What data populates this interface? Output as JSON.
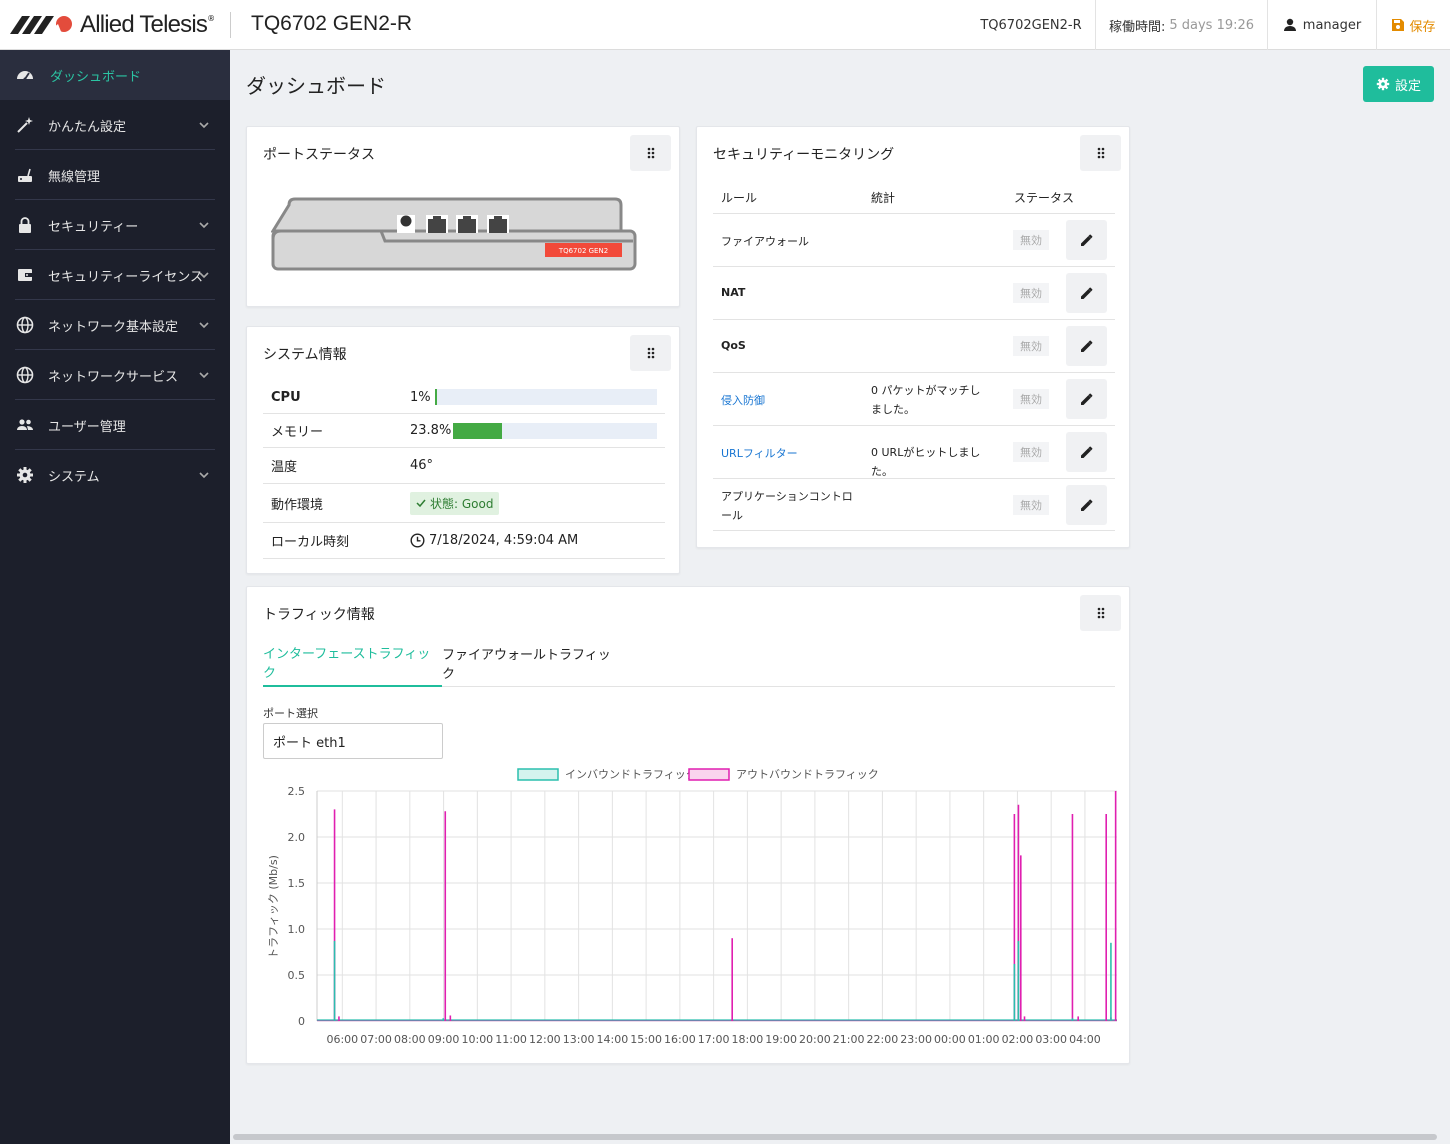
{
  "header": {
    "brand": "Allied Telesis",
    "brand_mark": "®",
    "device_title": "TQ6702 GEN2-R",
    "hostname": "TQ6702GEN2-R",
    "uptime_label": "稼働時間:",
    "uptime_value": "5 days 19:26",
    "user": "manager",
    "save": "保存"
  },
  "sidebar": {
    "items": [
      {
        "label": "ダッシュボード",
        "icon": "speedometer-icon"
      },
      {
        "label": "かんたん設定",
        "icon": "magic-wand-icon"
      },
      {
        "label": "無線管理",
        "icon": "router-icon"
      },
      {
        "label": "セキュリティー",
        "icon": "lock-icon"
      },
      {
        "label": "セキュリティーライセンス",
        "icon": "wallet-icon"
      },
      {
        "label": "ネットワーク基本設定",
        "icon": "globe-icon"
      },
      {
        "label": "ネットワークサービス",
        "icon": "globe-icon"
      },
      {
        "label": "ユーザー管理",
        "icon": "users-icon"
      },
      {
        "label": "システム",
        "icon": "gear-icon"
      }
    ]
  },
  "page": {
    "title": "ダッシュボード",
    "settings_button": "設定"
  },
  "port_status": {
    "title": "ポートステータス",
    "device_label": "TQ6702 GEN2"
  },
  "system_info": {
    "title": "システム情報",
    "cpu_label": "CPU",
    "cpu_value": "1%",
    "cpu_level": 0.01,
    "mem_label": "メモリー",
    "mem_value": "23.8%",
    "mem_level": 0.238,
    "temp_label": "温度",
    "temp_value": "46°",
    "env_label": "動作環境",
    "env_value": "状態: Good",
    "time_label": "ローカル時刻",
    "time_value": "7/18/2024, 4:59:04 AM"
  },
  "security": {
    "title": "セキュリティーモニタリング",
    "col_rule": "ルール",
    "col_stats": "統計",
    "col_status": "ステータス",
    "rows": [
      {
        "rule": "ファイアウォール",
        "stats": "",
        "status": "無効"
      },
      {
        "rule": "NAT",
        "stats": "",
        "status": "無効"
      },
      {
        "rule": "QoS",
        "stats": "",
        "status": "無効"
      },
      {
        "rule": "侵入防御",
        "stats": "0 パケットがマッチしました。",
        "status": "無効"
      },
      {
        "rule": "URLフィルター",
        "stats": "0 URLがヒットしました。",
        "status": "無効"
      },
      {
        "rule": "アプリケーションコントロール",
        "stats": "",
        "status": "無効"
      }
    ]
  },
  "traffic": {
    "title": "トラフィック情報",
    "tabs": [
      "インターフェーストラフィック",
      "ファイアウォールトラフィック"
    ],
    "port_label": "ポート選択",
    "port_value": "ポート eth1"
  },
  "colors": {
    "accent": "#1fbd9c",
    "inbound": "#2bbfad",
    "outbound": "#e01fb0",
    "save": "#e38b00"
  },
  "chart_data": {
    "type": "line",
    "ylabel": "トラフィック (Mb/s)",
    "ylim": [
      0,
      2.5
    ],
    "yticks": [
      "0",
      "0.5",
      "1.0",
      "1.5",
      "2.0",
      "2.5"
    ],
    "xticks": [
      "06:00",
      "07:00",
      "08:00",
      "09:00",
      "10:00",
      "11:00",
      "12:00",
      "13:00",
      "14:00",
      "15:00",
      "16:00",
      "17:00",
      "18:00",
      "19:00",
      "20:00",
      "21:00",
      "22:00",
      "23:00",
      "00:00",
      "01:00",
      "02:00",
      "03:00",
      "04:00"
    ],
    "x_range_hours": [
      5.25,
      28.95
    ],
    "legend": [
      "インバウンドトラフィック",
      "アウトバウンドトラフィック"
    ],
    "series": [
      {
        "name": "インバウンドトラフィック",
        "spikes": [
          [
            5.77,
            0.87
          ],
          [
            8.99,
            0.03
          ],
          [
            25.91,
            0.62
          ],
          [
            26.03,
            0.87
          ],
          [
            27.63,
            0.03
          ],
          [
            28.77,
            0.85
          ]
        ]
      },
      {
        "name": "アウトバウンドトラフィック",
        "spikes": [
          [
            5.77,
            2.3
          ],
          [
            5.9,
            0.05
          ],
          [
            9.05,
            2.28
          ],
          [
            9.2,
            0.06
          ],
          [
            17.55,
            0.9
          ],
          [
            25.91,
            2.25
          ],
          [
            26.03,
            2.35
          ],
          [
            26.1,
            1.8
          ],
          [
            26.21,
            0.05
          ],
          [
            27.63,
            2.25
          ],
          [
            27.8,
            0.05
          ],
          [
            28.63,
            2.25
          ],
          [
            28.77,
            0.04
          ],
          [
            28.91,
            2.5
          ]
        ]
      }
    ]
  }
}
